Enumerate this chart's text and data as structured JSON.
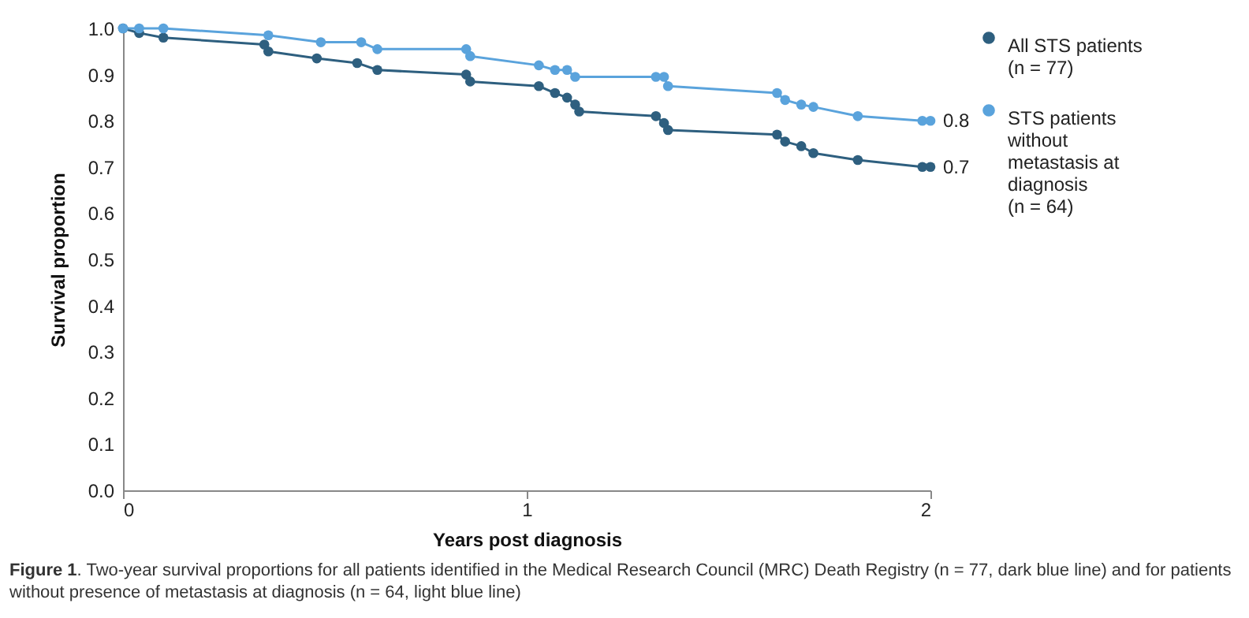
{
  "chart_data": {
    "type": "line",
    "xlabel": "Years post diagnosis",
    "ylabel": "Survival proportion",
    "xlim": [
      0,
      2
    ],
    "xticks": [
      0,
      1,
      2
    ],
    "ylim": [
      0,
      1
    ],
    "yticks": [
      {
        "value": 0,
        "label": "0.0"
      },
      0.1,
      0.2,
      0.3,
      0.4,
      0.5,
      0.6,
      0.7,
      0.8,
      0.9,
      {
        "value": 1,
        "label": "1.0"
      }
    ],
    "grid": false,
    "legend": "right",
    "marker": "circle",
    "line_style": "solid",
    "series": [
      {
        "name": "All STS patients (n = 77)",
        "color": "#2e5f7f",
        "x": [
          0,
          0.04,
          0.1,
          0.35,
          0.36,
          0.48,
          0.58,
          0.63,
          0.85,
          0.86,
          1.03,
          1.07,
          1.1,
          1.12,
          1.13,
          1.32,
          1.34,
          1.35,
          1.62,
          1.64,
          1.68,
          1.71,
          1.82,
          1.98,
          2.0
        ],
        "values": [
          1.0,
          0.99,
          0.98,
          0.965,
          0.95,
          0.935,
          0.925,
          0.91,
          0.9,
          0.885,
          0.875,
          0.86,
          0.85,
          0.835,
          0.82,
          0.81,
          0.795,
          0.78,
          0.77,
          0.755,
          0.745,
          0.73,
          0.715,
          0.7,
          0.7
        ]
      },
      {
        "name": "STS patients without metastasis at diagnosis (n = 64)",
        "color": "#5aa3dc",
        "x": [
          0,
          0.04,
          0.1,
          0.36,
          0.49,
          0.59,
          0.63,
          0.85,
          0.86,
          1.03,
          1.07,
          1.1,
          1.12,
          1.32,
          1.34,
          1.35,
          1.62,
          1.64,
          1.68,
          1.71,
          1.82,
          1.98,
          2.0
        ],
        "values": [
          1.0,
          1.0,
          1.0,
          0.985,
          0.97,
          0.97,
          0.955,
          0.955,
          0.94,
          0.92,
          0.91,
          0.91,
          0.895,
          0.895,
          0.895,
          0.875,
          0.86,
          0.845,
          0.835,
          0.83,
          0.81,
          0.8,
          0.8
        ]
      }
    ],
    "annotations": [
      {
        "text": "0.8",
        "x": 2,
        "y": 0.8
      },
      {
        "text": "0.7",
        "x": 2,
        "y": 0.7
      },
      "Figure 1. Two-year survival proportions for all patients identified in the Medical Research Council (MRC) Death Registry (n = 77, dark blue line) and for patients without presence of metastasis at diagnosis (n = 64, light blue line)"
    ]
  }
}
